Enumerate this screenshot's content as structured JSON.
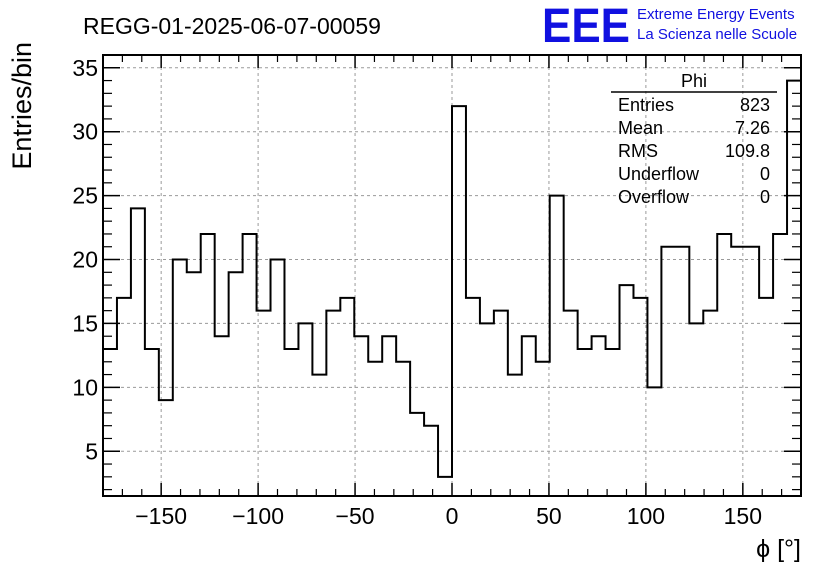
{
  "chart_data": {
    "type": "histogram",
    "title": "REGG-01-2025-06-07-00059",
    "xlabel": "ϕ [°]",
    "ylabel": "Entries/bin",
    "xlim": [
      -180,
      180
    ],
    "ylim": [
      1.5,
      36
    ],
    "bin_width": 7.2,
    "bin_edges_start": -180,
    "values": [
      13,
      17,
      24,
      13,
      9,
      20,
      19,
      22,
      14,
      19,
      22,
      16,
      20,
      13,
      15,
      11,
      16,
      17,
      14,
      12,
      14,
      12,
      8,
      7,
      3,
      32,
      17,
      15,
      16,
      11,
      14,
      12,
      25,
      16,
      13,
      14,
      13,
      18,
      17,
      10,
      21,
      21,
      15,
      16,
      22,
      21,
      21,
      17,
      22,
      34
    ],
    "x_ticks": [
      -150,
      -100,
      -50,
      0,
      50,
      100,
      150
    ],
    "x_tick_labels": [
      "−150",
      "−100",
      "−50",
      "0",
      "50",
      "100",
      "150"
    ],
    "y_ticks": [
      5,
      10,
      15,
      20,
      25,
      30,
      35
    ],
    "y_tick_labels": [
      "5",
      "10",
      "15",
      "20",
      "25",
      "30",
      "35"
    ],
    "grid": true
  },
  "stats": {
    "title": "Phi",
    "rows": [
      {
        "label": "Entries",
        "value": "823"
      },
      {
        "label": "Mean",
        "value": "7.26"
      },
      {
        "label": "RMS",
        "value": "109.8"
      },
      {
        "label": "Underflow",
        "value": "0"
      },
      {
        "label": "Overflow",
        "value": "0"
      }
    ]
  },
  "logo": {
    "mark": "EEE",
    "line1": "Extreme Energy Events",
    "line2": "La Scienza nelle Scuole",
    "color": "#1010e0"
  }
}
